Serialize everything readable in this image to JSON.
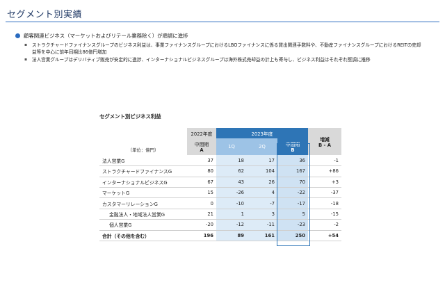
{
  "page": {
    "title": "セグメント別実績"
  },
  "bullets": {
    "main": "顧客関連ビジネス（マーケットおよびリテール業務除く）が順調に進捗",
    "subs": [
      "ストラクチャードファイナンスグループのビジネス利益は、事業ファイナンスグループにおけるLBOファイナンスに係る貸出関連手数料や、不動産ファイナンスグループにおけるREITの売却益等を中心に前年同期比86億円増加",
      "法人営業グループはデリバティブ販売が安定的に進捗、インターナショナルビジネスグループは海外株式売却益の計上も寄与し、ビジネス利益はそれぞれ堅調に推移"
    ]
  },
  "table": {
    "title": "セグメント別ビジネス利益",
    "unit": "（単位：億円）",
    "header": {
      "y2022": "2022年度",
      "y2023": "2023年度",
      "interim_a_line1": "中間期",
      "interim_a_line2": "A",
      "q1": "1Q",
      "q2": "2Q",
      "interim_b_line1": "中間期",
      "interim_b_line2": "B",
      "diff_line1": "増減",
      "diff_line2": "B - A"
    },
    "rows": [
      {
        "label": "法人営業G",
        "a": "37",
        "q1": "18",
        "q2": "17",
        "b": "36",
        "diff": "-1"
      },
      {
        "label": "ストラクチャードファイナンスG",
        "a": "80",
        "q1": "62",
        "q2": "104",
        "b": "167",
        "diff": "+86"
      },
      {
        "label": "インターナショナルビジネスG",
        "a": "67",
        "q1": "43",
        "q2": "26",
        "b": "70",
        "diff": "+3"
      },
      {
        "label": "マーケットG",
        "a": "15",
        "q1": "-26",
        "q2": "4",
        "b": "-22",
        "diff": "-37"
      },
      {
        "label": "カスタマーリレーションG",
        "a": "0",
        "q1": "-10",
        "q2": "-7",
        "b": "-17",
        "diff": "-18"
      },
      {
        "label": "金融法人・地域法人営業G",
        "a": "21",
        "q1": "1",
        "q2": "3",
        "b": "5",
        "diff": "-15"
      },
      {
        "label": "個人営業G",
        "a": "-20",
        "q1": "-12",
        "q2": "-11",
        "b": "-23",
        "diff": "-2"
      }
    ],
    "total": {
      "label": "合計（その他を含む）",
      "a": "196",
      "q1": "89",
      "q2": "161",
      "b": "250",
      "diff": "+54"
    }
  }
}
